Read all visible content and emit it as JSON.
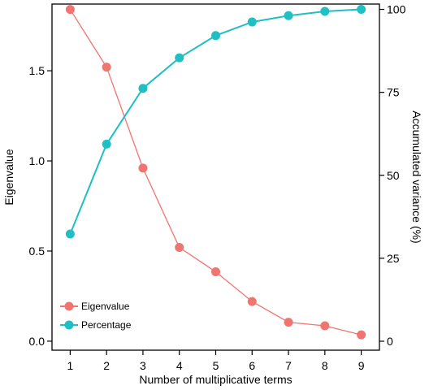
{
  "chart_data": {
    "type": "line",
    "title": "",
    "xlabel": "Number of multiplicative terms",
    "ylabel_left": "Eigenvalue",
    "ylabel_right": "Accumulated variance (%)",
    "x": [
      1,
      2,
      3,
      4,
      5,
      6,
      7,
      8,
      9
    ],
    "xlim": [
      0.5,
      9.5
    ],
    "ylim_left": [
      -0.05,
      1.87
    ],
    "ylim_right": [
      -2.7,
      101.6
    ],
    "y_left_ticks": [
      "0.0",
      "0.5",
      "1.0",
      "1.5"
    ],
    "y_right_ticks": [
      "0",
      "25",
      "50",
      "75",
      "100"
    ],
    "x_ticks": [
      "1",
      "2",
      "3",
      "4",
      "5",
      "6",
      "7",
      "8",
      "9"
    ],
    "grid": false,
    "legend_position": "bottom-left",
    "series": [
      {
        "name": "Eigenvalue",
        "axis": "left",
        "color": "#f07470",
        "values": [
          1.84,
          1.52,
          0.96,
          0.52,
          0.385,
          0.22,
          0.105,
          0.085,
          0.035
        ]
      },
      {
        "name": "Percentage",
        "axis": "right",
        "color": "#1fbfc3",
        "values": [
          32.3,
          59.4,
          76.2,
          85.4,
          92.1,
          96.2,
          98.1,
          99.4,
          100
        ]
      }
    ]
  }
}
